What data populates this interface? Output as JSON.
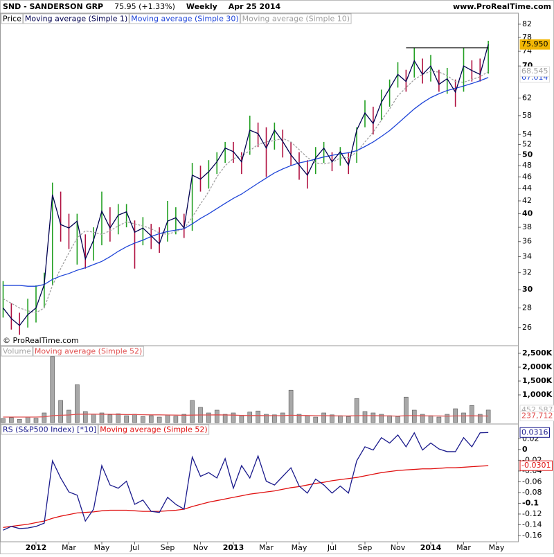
{
  "header": {
    "title": "SND - SANDERSON GRP",
    "quote": "75.95 (+1.33%)",
    "period": "Weekly",
    "date": "Apr 25 2014",
    "site": "www.ProRealTime.com"
  },
  "chart_data": [
    {
      "type": "ohlc",
      "label": "Price",
      "annotation": "© ProRealTime.com",
      "log_scale": true,
      "ylim": [
        24.4,
        83.5
      ],
      "yticks": [
        26,
        28,
        30,
        32,
        34,
        36,
        38,
        40,
        42,
        44,
        46,
        48,
        50,
        52,
        54,
        58,
        62,
        70,
        74,
        78,
        82
      ],
      "up_color": "#22a022",
      "down_color": "#b01040",
      "high": [
        31.0,
        28.5,
        27.5,
        29.0,
        30.5,
        32.0,
        45.0,
        43.5,
        40.0,
        40.0,
        37.0,
        38.0,
        43.5,
        41.0,
        41.5,
        41.5,
        39.0,
        39.5,
        38.5,
        38.0,
        42.0,
        41.0,
        40.0,
        48.5,
        48.0,
        49.0,
        50.5,
        52.5,
        52.5,
        50.5,
        58.0,
        56.5,
        55.5,
        56.5,
        55.0,
        52.5,
        50.5,
        49.0,
        51.5,
        52.5,
        50.5,
        51.5,
        50.5,
        55.5,
        61.5,
        60.0,
        64.0,
        66.5,
        71.0,
        69.0,
        75.0,
        72.0,
        73.0,
        69.0,
        69.5,
        66.5,
        75.0,
        71.5,
        72.0,
        77.0,
        null
      ],
      "low": [
        27.0,
        25.8,
        25.3,
        26.0,
        26.5,
        28.0,
        30.5,
        36.0,
        35.0,
        33.0,
        32.5,
        33.5,
        35.5,
        36.0,
        37.0,
        38.0,
        32.5,
        35.5,
        35.0,
        34.5,
        36.0,
        37.0,
        36.5,
        37.5,
        43.5,
        44.0,
        46.5,
        48.5,
        48.5,
        46.5,
        50.0,
        51.5,
        46.0,
        51.0,
        49.5,
        48.0,
        45.5,
        44.0,
        46.5,
        48.5,
        47.0,
        48.0,
        46.5,
        48.5,
        55.5,
        54.0,
        57.0,
        60.0,
        64.5,
        63.5,
        67.0,
        65.5,
        66.0,
        63.5,
        63.0,
        60.0,
        63.5,
        66.0,
        66.0,
        68.0,
        null
      ],
      "series": [
        {
          "name": "Moving average (Simple 1)",
          "color": "#000050",
          "last_label": "75.950",
          "label_fill": "#f2b705",
          "values": [
            28.0,
            26.9,
            26.2,
            27.3,
            28.0,
            30.6,
            43.0,
            38.4,
            37.9,
            38.9,
            33.7,
            36.2,
            40.4,
            37.9,
            39.8,
            40.3,
            37.3,
            37.9,
            36.8,
            35.7,
            38.9,
            39.4,
            37.9,
            46.3,
            45.6,
            46.9,
            48.7,
            51.3,
            50.6,
            48.7,
            54.9,
            54.2,
            51.3,
            54.9,
            52.6,
            50.0,
            48.1,
            46.3,
            49.4,
            51.3,
            48.7,
            50.6,
            48.1,
            54.9,
            58.6,
            56.3,
            61.0,
            64.3,
            67.8,
            66.0,
            71.4,
            67.8,
            70.0,
            65.3,
            66.7,
            63.4,
            70.0,
            68.8,
            67.8,
            75.95,
            null
          ]
        },
        {
          "name": "Moving average (Simple 30)",
          "color": "#1f45d8",
          "last_label": "67.014",
          "values": [
            30.5,
            30.5,
            30.5,
            30.4,
            30.4,
            30.6,
            31.2,
            31.6,
            31.9,
            32.3,
            32.6,
            33.0,
            33.4,
            34.0,
            34.7,
            35.3,
            35.8,
            36.2,
            36.7,
            37.1,
            37.4,
            37.6,
            37.8,
            38.5,
            39.3,
            40.0,
            40.8,
            41.6,
            42.4,
            43.1,
            44.0,
            44.9,
            45.8,
            46.7,
            47.4,
            48.0,
            48.5,
            48.8,
            49.2,
            49.6,
            49.9,
            50.2,
            50.4,
            50.8,
            51.6,
            52.5,
            53.6,
            54.8,
            56.3,
            57.9,
            59.5,
            60.9,
            62.1,
            63.0,
            63.8,
            64.3,
            64.9,
            65.5,
            66.2,
            67.014,
            null
          ]
        },
        {
          "name": "Moving average (Simple 10)",
          "color": "#a0a0a0",
          "dashed": true,
          "last_label": "68.545",
          "values": [
            29.0,
            28.5,
            28.0,
            27.7,
            27.5,
            28.0,
            30.5,
            32.5,
            34.5,
            36.5,
            37.5,
            37.3,
            37.0,
            37.5,
            38.2,
            38.8,
            38.5,
            38.2,
            37.8,
            37.2,
            37.0,
            37.4,
            37.8,
            39.5,
            41.5,
            43.5,
            46.0,
            48.0,
            49.3,
            49.8,
            50.8,
            52.0,
            52.5,
            52.8,
            53.2,
            52.5,
            51.0,
            49.5,
            48.5,
            48.3,
            48.6,
            49.4,
            49.5,
            50.5,
            52.5,
            54.5,
            57.0,
            59.5,
            62.5,
            64.5,
            66.5,
            67.8,
            68.6,
            68.4,
            67.5,
            66.0,
            65.8,
            66.5,
            67.2,
            68.545,
            null
          ]
        }
      ],
      "hline": {
        "value": 75,
        "x": [
          49,
          59
        ],
        "color": "#000000"
      }
    },
    {
      "type": "bar",
      "ylim": [
        0,
        2675000
      ],
      "yticks": [
        {
          "value": 1000000,
          "label": "1,000K"
        },
        {
          "value": 1500000,
          "label": "1,500K"
        },
        {
          "value": 2000000,
          "label": "2,000K"
        },
        {
          "value": 2500000,
          "label": "2,500K"
        }
      ],
      "series": [
        {
          "name": "Volume",
          "color": "#a8a8a8",
          "last_label": "452,587",
          "values": [
            150000,
            180000,
            120000,
            200000,
            160000,
            350000,
            2380000,
            800000,
            450000,
            1370000,
            400000,
            300000,
            350000,
            280000,
            320000,
            250000,
            300000,
            220000,
            250000,
            200000,
            280000,
            230000,
            300000,
            800000,
            550000,
            350000,
            450000,
            300000,
            350000,
            250000,
            380000,
            420000,
            300000,
            280000,
            350000,
            1170000,
            300000,
            250000,
            200000,
            350000,
            280000,
            250000,
            220000,
            870000,
            400000,
            350000,
            300000,
            250000,
            220000,
            920000,
            450000,
            300000,
            250000,
            200000,
            300000,
            500000,
            350000,
            620000,
            300000,
            452587,
            null
          ]
        },
        {
          "name": "Moving average (Simple 52)",
          "color": "#e05050",
          "last_label": "237,712",
          "values": [
            200000,
            200000,
            200000,
            200000,
            200000,
            210000,
            250000,
            265000,
            275000,
            300000,
            305000,
            305000,
            300000,
            300000,
            295000,
            290000,
            290000,
            285000,
            280000,
            280000,
            275000,
            270000,
            265000,
            270000,
            275000,
            275000,
            280000,
            275000,
            270000,
            260000,
            255000,
            255000,
            250000,
            250000,
            250000,
            265000,
            260000,
            255000,
            250000,
            250000,
            245000,
            240000,
            240000,
            250000,
            250000,
            250000,
            245000,
            240000,
            235000,
            250000,
            250000,
            245000,
            240000,
            240000,
            235000,
            240000,
            240000,
            245000,
            240000,
            237712,
            null
          ]
        }
      ]
    },
    {
      "type": "line",
      "ylim": [
        -0.169,
        0.041
      ],
      "yticks": [
        0.02,
        0,
        -0.02,
        -0.04,
        -0.06,
        -0.08,
        -0.1,
        -0.12,
        -0.14,
        -0.16
      ],
      "categories": [
        null,
        null,
        null,
        null,
        "2012",
        null,
        null,
        null,
        "Mar",
        null,
        null,
        null,
        "May",
        null,
        null,
        null,
        "Jul",
        null,
        null,
        null,
        "Sep",
        null,
        null,
        null,
        "Nov",
        null,
        null,
        null,
        "2013",
        null,
        null,
        null,
        "Mar",
        null,
        null,
        null,
        "May",
        null,
        null,
        null,
        "Jul",
        null,
        null,
        null,
        "Sep",
        null,
        null,
        null,
        "Nov",
        null,
        null,
        null,
        "2014",
        null,
        null,
        null,
        "Mar",
        null,
        null,
        null,
        "May"
      ],
      "series": [
        {
          "name": "RS (S&P500 Index) [*10]",
          "color": "#1a1a8c",
          "last_label": "0.0316",
          "label_border": true,
          "values": [
            -0.15,
            -0.143,
            -0.147,
            -0.146,
            -0.143,
            -0.137,
            -0.021,
            -0.053,
            -0.079,
            -0.085,
            -0.133,
            -0.111,
            -0.03,
            -0.066,
            -0.072,
            -0.059,
            -0.102,
            -0.094,
            -0.115,
            -0.117,
            -0.089,
            -0.102,
            -0.111,
            -0.014,
            -0.05,
            -0.043,
            -0.053,
            -0.017,
            -0.072,
            -0.03,
            -0.053,
            -0.012,
            -0.059,
            -0.066,
            -0.05,
            -0.034,
            -0.068,
            -0.081,
            -0.055,
            -0.066,
            -0.081,
            -0.068,
            -0.081,
            -0.021,
            0.005,
            -0.001,
            0.022,
            0.012,
            0.027,
            0.005,
            0.031,
            -0.001,
            0.012,
            0.001,
            -0.004,
            -0.004,
            0.022,
            0.005,
            0.031,
            0.0316,
            null
          ]
        },
        {
          "name": "Moving average (Simple 52)",
          "color": "#e01010",
          "last_label": "-0.0301",
          "label_border": true,
          "values": [
            -0.145,
            -0.143,
            -0.141,
            -0.139,
            -0.136,
            -0.133,
            -0.128,
            -0.124,
            -0.121,
            -0.118,
            -0.117,
            -0.116,
            -0.114,
            -0.113,
            -0.113,
            -0.113,
            -0.114,
            -0.115,
            -0.115,
            -0.115,
            -0.114,
            -0.113,
            -0.111,
            -0.106,
            -0.102,
            -0.098,
            -0.095,
            -0.092,
            -0.089,
            -0.086,
            -0.083,
            -0.081,
            -0.079,
            -0.077,
            -0.074,
            -0.071,
            -0.069,
            -0.066,
            -0.063,
            -0.061,
            -0.058,
            -0.056,
            -0.054,
            -0.052,
            -0.049,
            -0.046,
            -0.043,
            -0.041,
            -0.039,
            -0.038,
            -0.037,
            -0.036,
            -0.036,
            -0.035,
            -0.034,
            -0.034,
            -0.033,
            -0.032,
            -0.031,
            -0.0301,
            null
          ]
        }
      ]
    }
  ]
}
